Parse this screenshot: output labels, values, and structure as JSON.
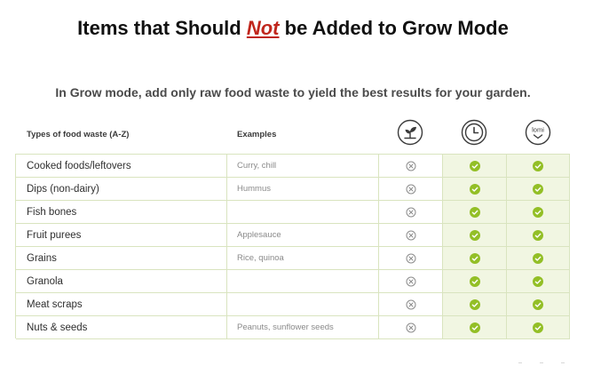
{
  "title": {
    "before": "Items that Should ",
    "emphasis": "Not",
    "after": " be Added to Grow Mode"
  },
  "subtitle": "In Grow mode, add only raw food waste to yield the best results for your garden.",
  "table": {
    "col_types": "Types of food waste (A-Z)",
    "col_examples": "Examples",
    "icons": [
      "plant-icon",
      "clock-icon",
      "lomi-logo-icon"
    ],
    "icon_text_lomi": "lomi",
    "colors": {
      "grid": "#d9e4bf",
      "ok_fill": "#f1f6e2",
      "check": "#93bf26",
      "xmark": "#8c8c8c"
    },
    "rows": [
      {
        "name": "Cooked foods/leftovers",
        "example": "Curry, chill"
      },
      {
        "name": "Dips (non-dairy)",
        "example": "Hummus"
      },
      {
        "name": "Fish bones",
        "example": ""
      },
      {
        "name": "Fruit purees",
        "example": "Applesauce"
      },
      {
        "name": "Grains",
        "example": "Rice, quinoa"
      },
      {
        "name": "Granola",
        "example": ""
      },
      {
        "name": "Meat scraps",
        "example": ""
      },
      {
        "name": "Nuts & seeds",
        "example": "Peanuts, sunflower seeds"
      }
    ]
  }
}
